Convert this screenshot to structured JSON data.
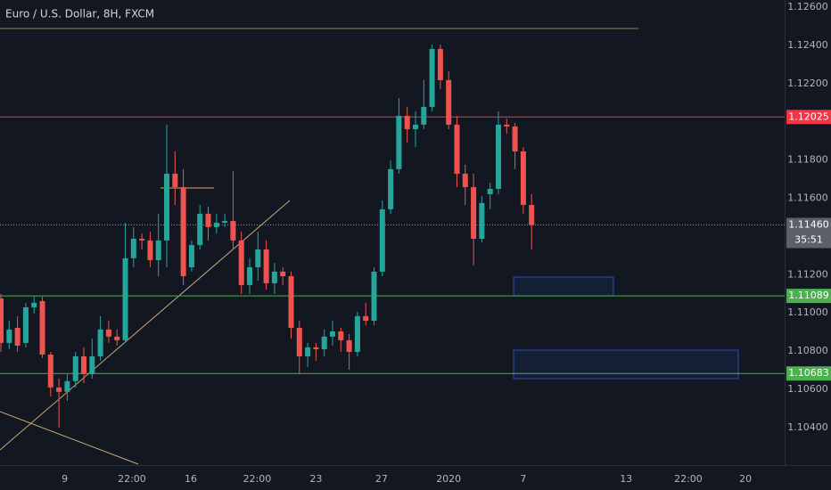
{
  "chart_data": {
    "type": "candlestick",
    "title": "Euro / U.S. Dollar, 8H, FXCM",
    "up_color": "#26a69a",
    "down_color": "#ef5350",
    "candles": [
      [
        1.11076,
        1.11099,
        1.10796,
        1.10843
      ],
      [
        1.10843,
        1.10959,
        1.1081,
        1.10913
      ],
      [
        1.10922,
        1.10983,
        1.10796,
        1.10829
      ],
      [
        1.10843,
        1.11053,
        1.1082,
        1.11029
      ],
      [
        1.11029,
        1.1109,
        1.10997,
        1.11053
      ],
      [
        1.11062,
        1.11085,
        1.10764,
        1.10782
      ],
      [
        1.10782,
        1.10796,
        1.10563,
        1.1061
      ],
      [
        1.1061,
        1.10656,
        1.104,
        1.10587
      ],
      [
        1.10587,
        1.1068,
        1.1054,
        1.10643
      ],
      [
        1.10643,
        1.10796,
        1.1061,
        1.10773
      ],
      [
        1.10773,
        1.1082,
        1.10633,
        1.1068
      ],
      [
        1.1068,
        1.10866,
        1.10656,
        1.10773
      ],
      [
        1.10773,
        1.10983,
        1.1075,
        1.10913
      ],
      [
        1.10913,
        1.10959,
        1.10843,
        1.10876
      ],
      [
        1.10876,
        1.10913,
        1.10829,
        1.10857
      ],
      [
        1.10857,
        1.11472,
        1.10843,
        1.11286
      ],
      [
        1.11286,
        1.11449,
        1.11239,
        1.11388
      ],
      [
        1.11388,
        1.11416,
        1.11332,
        1.11379
      ],
      [
        1.11379,
        1.11425,
        1.11239,
        1.11276
      ],
      [
        1.11276,
        1.11519,
        1.11192,
        1.11379
      ],
      [
        1.11379,
        1.11985,
        1.11239,
        1.11728
      ],
      [
        1.11728,
        1.11845,
        1.11565,
        1.11658
      ],
      [
        1.11658,
        1.11752,
        1.11146,
        1.11192
      ],
      [
        1.11239,
        1.11379,
        1.11216,
        1.11355
      ],
      [
        1.11355,
        1.11565,
        1.11332,
        1.11519
      ],
      [
        1.11519,
        1.11556,
        1.11379,
        1.11449
      ],
      [
        1.11449,
        1.11519,
        1.11416,
        1.11472
      ],
      [
        1.11472,
        1.11519,
        1.11449,
        1.11481
      ],
      [
        1.11481,
        1.11742,
        1.11332,
        1.11379
      ],
      [
        1.11379,
        1.11425,
        1.11099,
        1.11146
      ],
      [
        1.11146,
        1.11286,
        1.11099,
        1.11239
      ],
      [
        1.11239,
        1.11425,
        1.11169,
        1.11332
      ],
      [
        1.11332,
        1.11379,
        1.11122,
        1.11155
      ],
      [
        1.11155,
        1.11262,
        1.11099,
        1.11216
      ],
      [
        1.11216,
        1.11239,
        1.11146,
        1.11192
      ],
      [
        1.11192,
        1.11216,
        1.10866,
        1.10922
      ],
      [
        1.10922,
        1.10959,
        1.1068,
        1.10773
      ],
      [
        1.10773,
        1.10843,
        1.10717,
        1.1082
      ],
      [
        1.1082,
        1.10843,
        1.1075,
        1.1081
      ],
      [
        1.1081,
        1.10913,
        1.10773,
        1.10876
      ],
      [
        1.10876,
        1.10959,
        1.10829,
        1.10903
      ],
      [
        1.10903,
        1.10922,
        1.10796,
        1.10857
      ],
      [
        1.10857,
        1.10889,
        1.10703,
        1.10796
      ],
      [
        1.10796,
        1.11006,
        1.10773,
        1.10983
      ],
      [
        1.10983,
        1.11053,
        1.10936,
        1.10959
      ],
      [
        1.10959,
        1.11239,
        1.10936,
        1.11216
      ],
      [
        1.11216,
        1.11588,
        1.11192,
        1.11542
      ],
      [
        1.11542,
        1.11798,
        1.11519,
        1.11752
      ],
      [
        1.11752,
        1.12124,
        1.11728,
        1.12031
      ],
      [
        1.12031,
        1.12078,
        1.11891,
        1.11961
      ],
      [
        1.11961,
        1.12054,
        1.11868,
        1.11985
      ],
      [
        1.11985,
        1.12218,
        1.11961,
        1.12078
      ],
      [
        1.12078,
        1.12404,
        1.12054,
        1.12381
      ],
      [
        1.12381,
        1.12404,
        1.12171,
        1.12218
      ],
      [
        1.12218,
        1.12264,
        1.11961,
        1.11985
      ],
      [
        1.11985,
        1.12031,
        1.11658,
        1.11728
      ],
      [
        1.11728,
        1.11775,
        1.11565,
        1.11658
      ],
      [
        1.11658,
        1.11728,
        1.11248,
        1.11388
      ],
      [
        1.11388,
        1.11612,
        1.11369,
        1.11575
      ],
      [
        1.11621,
        1.11682,
        1.11542,
        1.11649
      ],
      [
        1.11649,
        1.12054,
        1.11621,
        1.11985
      ],
      [
        1.11985,
        1.12017,
        1.11938,
        1.11975
      ],
      [
        1.11975,
        1.11994,
        1.11752,
        1.11845
      ],
      [
        1.11845,
        1.11868,
        1.11519,
        1.11565
      ],
      [
        1.11565,
        1.11621,
        1.11332,
        1.1146
      ]
    ],
    "xlim": [
      -0.11,
      94.52
    ],
    "xticks": [
      {
        "value": 7.7,
        "label": "9"
      },
      {
        "value": 15.8,
        "label": "22:00"
      },
      {
        "value": 22.9,
        "label": "16"
      },
      {
        "value": 30.9,
        "label": "22:00"
      },
      {
        "value": 38,
        "label": "23"
      },
      {
        "value": 45.9,
        "label": "27"
      },
      {
        "value": 54,
        "label": "2020"
      },
      {
        "value": 63,
        "label": "7"
      },
      {
        "value": 75.4,
        "label": "13"
      },
      {
        "value": 82.9,
        "label": "22:00"
      },
      {
        "value": 89.8,
        "label": "20"
      }
    ],
    "ylim": [
      1.10204,
      1.12637
    ],
    "yticks": [
      {
        "value": 1.126,
        "label": "1.12600"
      },
      {
        "value": 1.124,
        "label": "1.12400"
      },
      {
        "value": 1.122,
        "label": "1.12200"
      },
      {
        "value": 1.118,
        "label": "1.11800"
      },
      {
        "value": 1.116,
        "label": "1.11600"
      },
      {
        "value": 1.112,
        "label": "1.11200"
      },
      {
        "value": 1.11,
        "label": "1.11000"
      },
      {
        "value": 1.108,
        "label": "1.10800"
      },
      {
        "value": 1.106,
        "label": "1.10600"
      },
      {
        "value": 1.104,
        "label": "1.10400"
      }
    ],
    "levels": [
      {
        "value": 1.12025,
        "color": "#f23645"
      },
      {
        "value": 1.11089,
        "color": "#4caf50"
      },
      {
        "value": 1.10683,
        "color": "#4caf50"
      }
    ],
    "last_price": {
      "value": 1.1146,
      "label": "1.11460",
      "color": "#5d606b"
    },
    "countdown": "35:51"
  }
}
